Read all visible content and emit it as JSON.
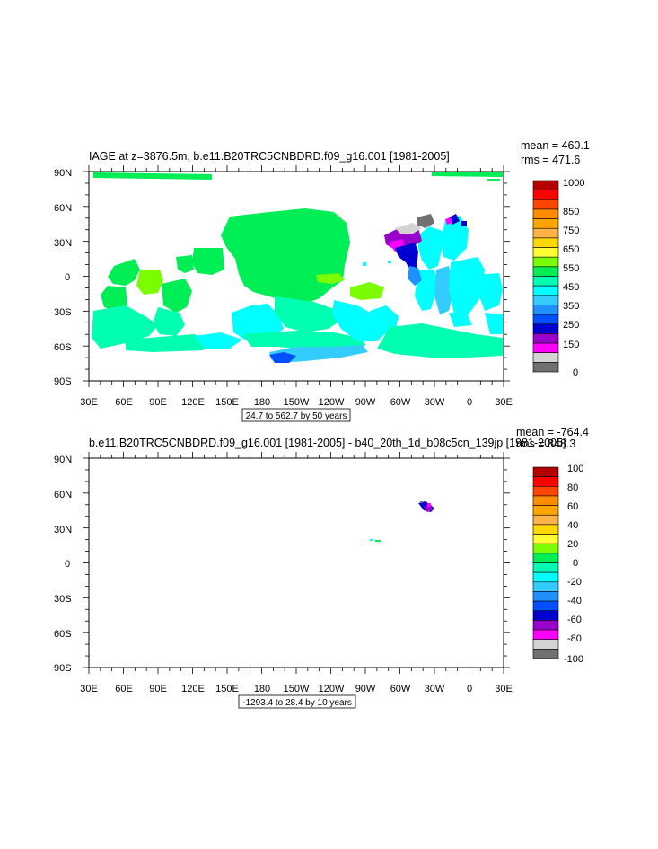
{
  "chart_data": [
    {
      "type": "heatmap",
      "title": "IAGE at z=3876.5m, b.e11.B20TRC5CNBDRD.f09_g16.001 [1981-2005]",
      "stats": {
        "mean": "mean = 460.1",
        "rms": "rms = 471.6"
      },
      "y_ticks": [
        "90N",
        "60N",
        "30N",
        "0",
        "30S",
        "60S",
        "90S"
      ],
      "x_ticks": [
        "30E",
        "60E",
        "90E",
        "120E",
        "150E",
        "180",
        "150W",
        "120W",
        "90W",
        "60W",
        "30W",
        "0",
        "30E"
      ],
      "range_label": "24.7 to 562.7 by 50 years",
      "colorbar": {
        "labels": [
          "1000",
          "850",
          "750",
          "650",
          "550",
          "450",
          "350",
          "250",
          "150",
          "0"
        ],
        "colors": [
          "#b30000",
          "#ff0000",
          "#ff4500",
          "#ff8c00",
          "#ffa500",
          "#ffb347",
          "#ffd700",
          "#ffff33",
          "#7cfc00",
          "#00ee55",
          "#00ffb0",
          "#00ffff",
          "#33ccff",
          "#1e90ff",
          "#0050ff",
          "#0000d0",
          "#9900cc",
          "#ff00ff",
          "#d3d3d3",
          "#707070"
        ]
      }
    },
    {
      "type": "heatmap",
      "title": "b.e11.B20TRC5CNBDRD.f09_g16.001 [1981-2005] - b40_20th_1d_b08c5cn_139jp [1981-2005]",
      "stats": {
        "mean": "mean = -764.4",
        "rms": "rms = 848.3"
      },
      "y_ticks": [
        "90N",
        "60N",
        "30N",
        "0",
        "30S",
        "60S",
        "90S"
      ],
      "x_ticks": [
        "30E",
        "60E",
        "90E",
        "120E",
        "150E",
        "180",
        "150W",
        "120W",
        "90W",
        "60W",
        "30W",
        "0",
        "30E"
      ],
      "range_label": "-1293.4 to 28.4 by 10 years",
      "colorbar": {
        "labels": [
          "100",
          "80",
          "60",
          "40",
          "20",
          "0",
          "-20",
          "-40",
          "-60",
          "-80",
          "-100"
        ],
        "colors": [
          "#b30000",
          "#ff0000",
          "#ff4500",
          "#ff8c00",
          "#ffa500",
          "#ffb347",
          "#ffd700",
          "#ffff33",
          "#7cfc00",
          "#00ee55",
          "#00ffb0",
          "#00ffff",
          "#33ccff",
          "#1e90ff",
          "#0050ff",
          "#0000d0",
          "#9900cc",
          "#ff00ff",
          "#d3d3d3",
          "#707070"
        ]
      }
    }
  ]
}
